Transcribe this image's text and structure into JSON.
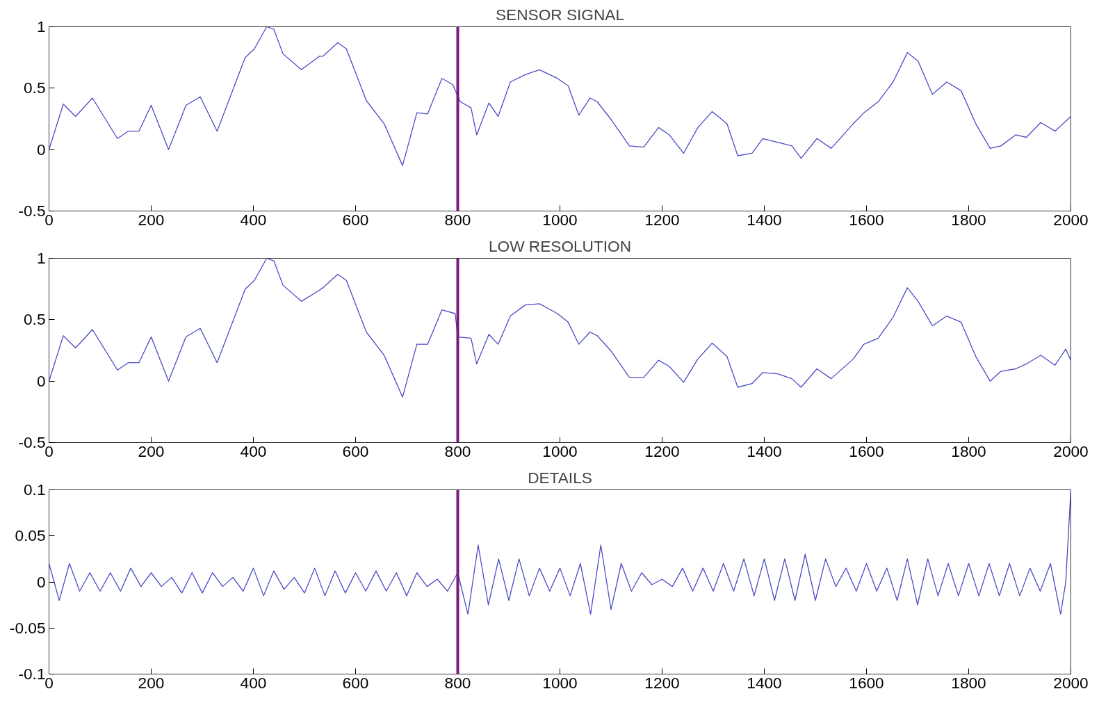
{
  "chart_data": [
    {
      "type": "line",
      "title": "SENSOR SIGNAL",
      "xlim": [
        0,
        2000
      ],
      "ylim": [
        -0.5,
        1
      ],
      "xticks": [
        0,
        200,
        400,
        600,
        800,
        1000,
        1200,
        1400,
        1600,
        1800,
        2000
      ],
      "yticks": [
        -0.5,
        0,
        0.5,
        1
      ],
      "series": [
        {
          "color": "#4b4bc8",
          "x": [
            0,
            28,
            52,
            85,
            134,
            155,
            176,
            200,
            234,
            268,
            296,
            329,
            384,
            402,
            426,
            440,
            458,
            494,
            529,
            536,
            565,
            582,
            621,
            656,
            692,
            720,
            741,
            769,
            790,
            805,
            826,
            837,
            861,
            879,
            903,
            932,
            960,
            995,
            1016,
            1037,
            1059,
            1073,
            1101,
            1136,
            1164,
            1193,
            1214,
            1242,
            1270,
            1298,
            1327,
            1348,
            1376,
            1397,
            1426,
            1454,
            1472,
            1503,
            1531,
            1574,
            1595,
            1623,
            1652,
            1680,
            1701,
            1729,
            1757,
            1785,
            1814,
            1842,
            1863,
            1892,
            1913,
            1941,
            1969,
            2000
          ],
          "values": [
            0,
            0.37,
            0.27,
            0.42,
            0.09,
            0.15,
            0.15,
            0.36,
            0.0,
            0.36,
            0.43,
            0.15,
            0.75,
            0.82,
            1.0,
            0.98,
            0.78,
            0.65,
            0.76,
            0.76,
            0.87,
            0.82,
            0.4,
            0.21,
            -0.13,
            0.3,
            0.29,
            0.58,
            0.53,
            0.39,
            0.34,
            0.12,
            0.38,
            0.27,
            0.55,
            0.61,
            0.65,
            0.58,
            0.52,
            0.28,
            0.42,
            0.39,
            0.24,
            0.03,
            0.02,
            0.18,
            0.12,
            -0.03,
            0.18,
            0.31,
            0.21,
            -0.05,
            -0.03,
            0.09,
            0.06,
            0.03,
            -0.07,
            0.09,
            0.01,
            0.21,
            0.3,
            0.39,
            0.55,
            0.79,
            0.72,
            0.45,
            0.55,
            0.48,
            0.21,
            0.01,
            0.03,
            0.12,
            0.1,
            0.22,
            0.15,
            0.27
          ]
        }
      ],
      "ref_lines": [
        {
          "axis": "x",
          "value": 800,
          "color": "#7b1a7b"
        }
      ]
    },
    {
      "type": "line",
      "title": "LOW RESOLUTION",
      "xlim": [
        0,
        2000
      ],
      "ylim": [
        -0.5,
        1
      ],
      "xticks": [
        0,
        200,
        400,
        600,
        800,
        1000,
        1200,
        1400,
        1600,
        1800,
        2000
      ],
      "yticks": [
        -0.5,
        0,
        0.5,
        1
      ],
      "series": [
        {
          "color": "#4b4bc8",
          "x": [
            0,
            28,
            52,
            85,
            134,
            155,
            176,
            200,
            234,
            268,
            296,
            329,
            384,
            402,
            426,
            440,
            458,
            494,
            529,
            536,
            565,
            582,
            621,
            656,
            692,
            720,
            741,
            769,
            795,
            800,
            826,
            837,
            861,
            879,
            903,
            932,
            960,
            995,
            1016,
            1037,
            1059,
            1073,
            1101,
            1136,
            1164,
            1193,
            1214,
            1242,
            1270,
            1298,
            1327,
            1348,
            1376,
            1397,
            1426,
            1454,
            1472,
            1503,
            1531,
            1574,
            1595,
            1623,
            1652,
            1680,
            1701,
            1729,
            1757,
            1785,
            1814,
            1842,
            1863,
            1892,
            1913,
            1941,
            1969,
            1990,
            2000
          ],
          "values": [
            0,
            0.37,
            0.27,
            0.42,
            0.09,
            0.15,
            0.15,
            0.36,
            0.0,
            0.36,
            0.43,
            0.15,
            0.75,
            0.82,
            1.0,
            0.98,
            0.78,
            0.65,
            0.74,
            0.76,
            0.87,
            0.82,
            0.4,
            0.21,
            -0.13,
            0.3,
            0.3,
            0.58,
            0.55,
            0.36,
            0.35,
            0.14,
            0.38,
            0.3,
            0.53,
            0.62,
            0.63,
            0.55,
            0.48,
            0.3,
            0.4,
            0.37,
            0.24,
            0.03,
            0.03,
            0.17,
            0.12,
            -0.01,
            0.18,
            0.31,
            0.2,
            -0.05,
            -0.02,
            0.07,
            0.06,
            0.02,
            -0.05,
            0.1,
            0.02,
            0.18,
            0.3,
            0.35,
            0.52,
            0.76,
            0.65,
            0.45,
            0.53,
            0.48,
            0.2,
            0.0,
            0.08,
            0.1,
            0.14,
            0.21,
            0.13,
            0.26,
            0.17
          ]
        }
      ],
      "ref_lines": [
        {
          "axis": "x",
          "value": 800,
          "color": "#7b1a7b"
        }
      ]
    },
    {
      "type": "line",
      "title": "DETAILS",
      "xlim": [
        0,
        2000
      ],
      "ylim": [
        -0.1,
        0.1
      ],
      "xticks": [
        0,
        200,
        400,
        600,
        800,
        1000,
        1200,
        1400,
        1600,
        1800,
        2000
      ],
      "yticks": [
        -0.1,
        -0.05,
        0,
        0.05,
        0.1
      ],
      "series": [
        {
          "color": "#4b4bc8",
          "x": [
            0,
            20,
            40,
            60,
            80,
            100,
            120,
            140,
            160,
            180,
            200,
            220,
            240,
            260,
            280,
            300,
            320,
            340,
            360,
            380,
            400,
            420,
            440,
            460,
            480,
            500,
            520,
            540,
            560,
            580,
            600,
            620,
            640,
            660,
            680,
            700,
            720,
            740,
            760,
            780,
            800,
            820,
            840,
            860,
            880,
            900,
            920,
            940,
            960,
            980,
            1000,
            1020,
            1040,
            1060,
            1080,
            1100,
            1120,
            1140,
            1160,
            1180,
            1200,
            1220,
            1240,
            1260,
            1280,
            1300,
            1320,
            1340,
            1360,
            1380,
            1400,
            1420,
            1440,
            1460,
            1480,
            1500,
            1520,
            1540,
            1560,
            1580,
            1600,
            1620,
            1640,
            1660,
            1680,
            1700,
            1720,
            1740,
            1760,
            1780,
            1800,
            1820,
            1840,
            1860,
            1880,
            1900,
            1920,
            1940,
            1960,
            1980,
            1990,
            2000
          ],
          "values": [
            0.02,
            -0.02,
            0.02,
            -0.01,
            0.01,
            -0.01,
            0.01,
            -0.01,
            0.015,
            -0.005,
            0.01,
            -0.005,
            0.005,
            -0.012,
            0.01,
            -0.012,
            0.01,
            -0.005,
            0.005,
            -0.01,
            0.015,
            -0.015,
            0.012,
            -0.008,
            0.005,
            -0.012,
            0.015,
            -0.015,
            0.012,
            -0.012,
            0.01,
            -0.01,
            0.012,
            -0.01,
            0.01,
            -0.015,
            0.01,
            -0.005,
            0.003,
            -0.01,
            0.01,
            -0.035,
            0.04,
            -0.025,
            0.025,
            -0.02,
            0.025,
            -0.015,
            0.015,
            -0.01,
            0.015,
            -0.015,
            0.02,
            -0.035,
            0.04,
            -0.03,
            0.02,
            -0.01,
            0.01,
            -0.003,
            0.003,
            -0.005,
            0.015,
            -0.01,
            0.015,
            -0.01,
            0.02,
            -0.01,
            0.025,
            -0.015,
            0.025,
            -0.02,
            0.025,
            -0.02,
            0.03,
            -0.02,
            0.025,
            -0.005,
            0.015,
            -0.01,
            0.02,
            -0.01,
            0.015,
            -0.02,
            0.025,
            -0.025,
            0.025,
            -0.015,
            0.02,
            -0.015,
            0.02,
            -0.015,
            0.02,
            -0.015,
            0.02,
            -0.015,
            0.015,
            -0.01,
            0.02,
            -0.035,
            0.0,
            0.1
          ]
        }
      ],
      "ref_lines": [
        {
          "axis": "x",
          "value": 800,
          "color": "#7b1a7b"
        }
      ]
    }
  ]
}
